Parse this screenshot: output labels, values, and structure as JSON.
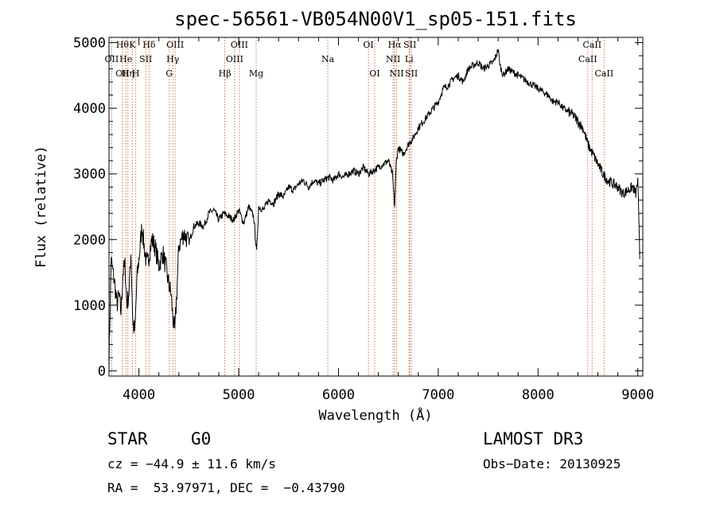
{
  "chart_data": {
    "type": "line",
    "title": "spec-56561-VB054N00V1_sp05-151.fits",
    "xlabel": "Wavelength (Å)",
    "ylabel": "Flux (relative)",
    "xlim": [
      3700,
      9050
    ],
    "ylim": [
      -80,
      5080
    ],
    "x_ticks": [
      4000,
      5000,
      6000,
      7000,
      8000,
      9000
    ],
    "y_ticks": [
      0,
      1000,
      2000,
      3000,
      4000,
      5000
    ],
    "grid": false,
    "series": [
      {
        "name": "spectrum",
        "x": [
          3700,
          3710,
          3720,
          3740,
          3760,
          3780,
          3800,
          3820,
          3840,
          3860,
          3880,
          3900,
          3920,
          3940,
          3960,
          3980,
          4000,
          4030,
          4060,
          4080,
          4100,
          4130,
          4160,
          4200,
          4240,
          4280,
          4300,
          4320,
          4340,
          4360,
          4380,
          4400,
          4450,
          4500,
          4550,
          4600,
          4650,
          4700,
          4750,
          4800,
          4850,
          4900,
          4950,
          5000,
          5050,
          5100,
          5150,
          5180,
          5200,
          5250,
          5300,
          5350,
          5400,
          5450,
          5500,
          5550,
          5600,
          5650,
          5700,
          5750,
          5800,
          5850,
          5900,
          5950,
          6000,
          6050,
          6100,
          6150,
          6200,
          6250,
          6300,
          6350,
          6400,
          6450,
          6500,
          6540,
          6563,
          6580,
          6600,
          6650,
          6700,
          6750,
          6800,
          6850,
          6900,
          6950,
          7000,
          7050,
          7100,
          7150,
          7200,
          7250,
          7300,
          7350,
          7400,
          7450,
          7500,
          7550,
          7580,
          7600,
          7620,
          7650,
          7700,
          7750,
          7800,
          7850,
          7900,
          7950,
          8000,
          8050,
          8100,
          8150,
          8200,
          8250,
          8300,
          8350,
          8400,
          8450,
          8500,
          8550,
          8600,
          8650,
          8700,
          8750,
          8800,
          8850,
          8900,
          8950,
          8980,
          9000,
          9020
        ],
        "values": [
          100,
          900,
          1700,
          1500,
          1300,
          1000,
          1150,
          900,
          1500,
          1600,
          1000,
          1200,
          1800,
          700,
          600,
          1400,
          1700,
          2200,
          1800,
          1600,
          1750,
          2000,
          1900,
          1600,
          1800,
          1500,
          1300,
          1200,
          800,
          600,
          1200,
          1900,
          2100,
          1950,
          2200,
          2250,
          2200,
          2400,
          2450,
          2300,
          2400,
          2350,
          2300,
          2450,
          2250,
          2500,
          2350,
          1800,
          2500,
          2450,
          2600,
          2550,
          2700,
          2650,
          2800,
          2750,
          2850,
          2900,
          2800,
          2900,
          2850,
          2900,
          2950,
          2900,
          3000,
          2950,
          3000,
          3050,
          3000,
          3100,
          3000,
          3050,
          3100,
          3150,
          3200,
          3000,
          2500,
          3200,
          3400,
          3300,
          3450,
          3550,
          3700,
          3800,
          3900,
          4000,
          4100,
          4300,
          4350,
          4450,
          4500,
          4400,
          4600,
          4650,
          4700,
          4600,
          4650,
          4700,
          4800,
          4900,
          4650,
          4500,
          4600,
          4550,
          4500,
          4450,
          4400,
          4350,
          4300,
          4250,
          4200,
          4100,
          4100,
          4000,
          3950,
          3900,
          3800,
          3700,
          3450,
          3300,
          3150,
          3000,
          2900,
          2850,
          2800,
          2700,
          2750,
          2800,
          2700,
          2900,
          1700
        ]
      }
    ],
    "line_marks": [
      {
        "wl": 3727,
        "label": "OII",
        "row": 1
      },
      {
        "wl": 3835,
        "label": "Hθ",
        "row": 0
      },
      {
        "wl": 3835,
        "label": "OII",
        "row": 2
      },
      {
        "wl": 3869,
        "label": "He",
        "row": 1
      },
      {
        "wl": 3889,
        "label": "Hη",
        "row": 2
      },
      {
        "wl": 3934,
        "label": "K",
        "row": 0
      },
      {
        "wl": 3968,
        "label": "H",
        "row": 2
      },
      {
        "wl": 4069,
        "label": "SII",
        "row": 1
      },
      {
        "wl": 4102,
        "label": "Hδ",
        "row": 0
      },
      {
        "wl": 4304,
        "label": "G",
        "row": 2
      },
      {
        "wl": 4340,
        "label": "Hγ",
        "row": 1
      },
      {
        "wl": 4363,
        "label": "OIII",
        "row": 0
      },
      {
        "wl": 4861,
        "label": "Hβ",
        "row": 2
      },
      {
        "wl": 4959,
        "label": "OIII",
        "row": 1
      },
      {
        "wl": 5007,
        "label": "OIII",
        "row": 0
      },
      {
        "wl": 5175,
        "label": "Mg",
        "row": 2
      },
      {
        "wl": 5893,
        "label": "Na",
        "row": 1
      },
      {
        "wl": 6300,
        "label": "OI",
        "row": 0
      },
      {
        "wl": 6363,
        "label": "OI",
        "row": 2
      },
      {
        "wl": 6548,
        "label": "NII",
        "row": 1
      },
      {
        "wl": 6563,
        "label": "Hα",
        "row": 0
      },
      {
        "wl": 6583,
        "label": "NII",
        "row": 2
      },
      {
        "wl": 6708,
        "label": "Li",
        "row": 1
      },
      {
        "wl": 6716,
        "label": "SII",
        "row": 0
      },
      {
        "wl": 6731,
        "label": "SII",
        "row": 2
      },
      {
        "wl": 8498,
        "label": "CaII",
        "row": 1
      },
      {
        "wl": 8542,
        "label": "CaII",
        "row": 0
      },
      {
        "wl": 8662,
        "label": "CaII",
        "row": 2
      }
    ],
    "colors": {
      "spectrum": "#000000",
      "marker": "#c8643c",
      "axis": "#000000"
    }
  },
  "info": {
    "object_class": "STAR",
    "subclass": "G0",
    "survey": "LAMOST DR3",
    "redshift": "cz = −44.9 ± 11.6 km/s",
    "obs_date": "Obs−Date: 20130925",
    "coords": "RA =  53.97971, DEC =  −0.43790"
  }
}
